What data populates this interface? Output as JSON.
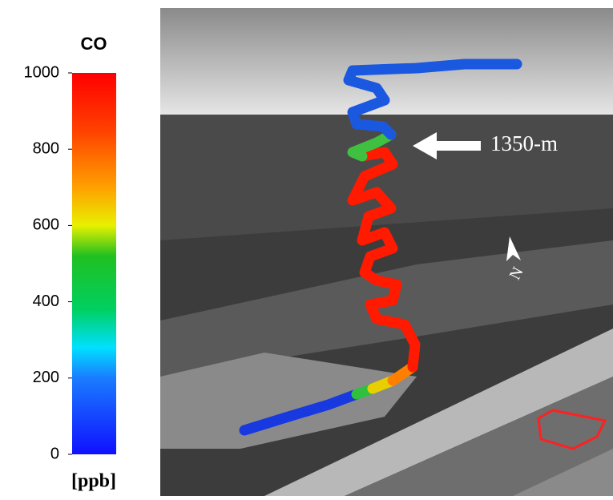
{
  "chart_data": {
    "type": "colorbar",
    "title": "CO",
    "ylabel": "[ppb]",
    "ylim": [
      0,
      1000
    ],
    "yticks": [
      0,
      200,
      400,
      600,
      800,
      1000
    ],
    "annotations": [
      "1350-m",
      "N"
    ]
  }
}
